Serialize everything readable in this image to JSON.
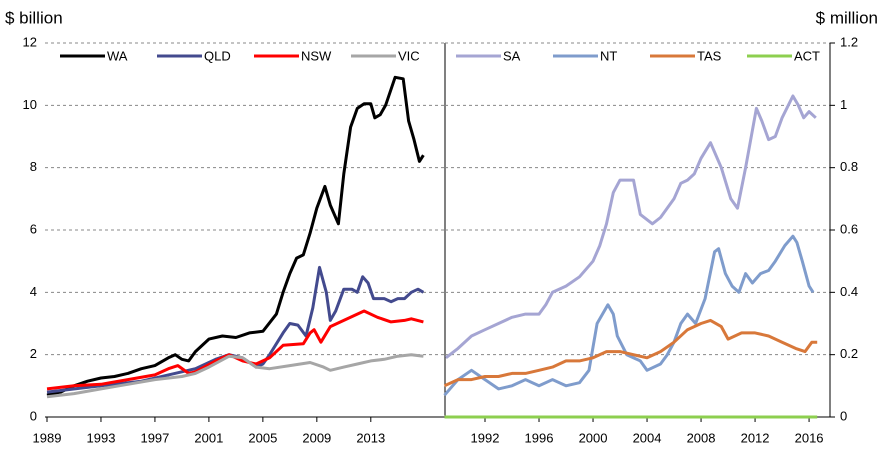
{
  "chart_data": [
    {
      "type": "line",
      "y_label": "$ billion",
      "y_axis_side": "left",
      "grid": true,
      "xlim": [
        1989,
        2018.5
      ],
      "xticks": [
        1989,
        1993,
        1997,
        2001,
        2005,
        2009,
        2013
      ],
      "ylim": [
        0,
        12
      ],
      "yticks": [
        0,
        2,
        4,
        6,
        8,
        10,
        12
      ],
      "series": [
        {
          "name": "WA",
          "color": "#000000",
          "x": [
            1989,
            1990,
            1991,
            1992,
            1993,
            1994,
            1995,
            1996,
            1997,
            1998,
            1998.5,
            1999,
            1999.5,
            2000,
            2001,
            2002,
            2003,
            2004,
            2005,
            2006,
            2006.5,
            2007,
            2007.5,
            2008,
            2008.5,
            2009,
            2009.6,
            2010,
            2010.6,
            2011,
            2011.5,
            2012,
            2012.5,
            2013,
            2013.3,
            2013.7,
            2014.1,
            2014.8,
            2015.4,
            2015.8,
            2016.2,
            2016.6,
            2016.9
          ],
          "values": [
            0.7,
            0.8,
            1.0,
            1.15,
            1.25,
            1.3,
            1.4,
            1.55,
            1.65,
            1.9,
            2.0,
            1.85,
            1.8,
            2.1,
            2.5,
            2.6,
            2.55,
            2.7,
            2.75,
            3.3,
            4.0,
            4.6,
            5.1,
            5.2,
            5.9,
            6.7,
            7.4,
            6.8,
            6.2,
            7.8,
            9.3,
            9.9,
            10.05,
            10.05,
            9.6,
            9.7,
            10.0,
            10.9,
            10.85,
            9.5,
            8.9,
            8.2,
            8.4
          ]
        },
        {
          "name": "QLD",
          "color": "#434a8e",
          "x": [
            1989,
            1993,
            1996,
            1998,
            2000,
            2001.5,
            2002.5,
            2003.5,
            2004.5,
            2005,
            2005.5,
            2006.5,
            2007,
            2007.6,
            2008.2,
            2008.7,
            2009.2,
            2009.7,
            2010,
            2010.4,
            2011,
            2011.6,
            2012,
            2012.4,
            2012.8,
            2013.2,
            2014,
            2014.5,
            2015,
            2015.5,
            2016,
            2016.5,
            2016.9
          ],
          "values": [
            0.8,
            1.0,
            1.15,
            1.35,
            1.55,
            1.85,
            2.0,
            1.9,
            1.6,
            1.7,
            2.0,
            2.7,
            3.0,
            2.95,
            2.6,
            3.5,
            4.8,
            4.0,
            3.1,
            3.4,
            4.1,
            4.1,
            4.0,
            4.5,
            4.3,
            3.8,
            3.8,
            3.7,
            3.8,
            3.8,
            4.0,
            4.1,
            4.0
          ]
        },
        {
          "name": "NSW",
          "color": "#ff0000",
          "x": [
            1989,
            1991,
            1993,
            1995,
            1997,
            1998,
            1998.7,
            1999.5,
            2000,
            2001.5,
            2002.5,
            2003.5,
            2004.5,
            2005.5,
            2006.5,
            2008,
            2008.5,
            2008.8,
            2009.3,
            2010,
            2011,
            2012,
            2012.5,
            2013.5,
            2014.5,
            2015.5,
            2016,
            2016.9
          ],
          "values": [
            0.9,
            1.0,
            1.05,
            1.2,
            1.35,
            1.55,
            1.65,
            1.4,
            1.45,
            1.8,
            2.0,
            1.8,
            1.7,
            1.9,
            2.3,
            2.35,
            2.7,
            2.8,
            2.4,
            2.9,
            3.1,
            3.3,
            3.4,
            3.2,
            3.05,
            3.1,
            3.15,
            3.05
          ]
        },
        {
          "name": "VIC",
          "color": "#a6a6a6",
          "x": [
            1989,
            1991,
            1993,
            1995,
            1997,
            1999,
            2000,
            2001,
            2002.5,
            2003.5,
            2004.5,
            2005.5,
            2007,
            2008.5,
            2009.5,
            2010,
            2011,
            2012,
            2013,
            2014,
            2015,
            2016,
            2016.9
          ],
          "values": [
            0.65,
            0.75,
            0.9,
            1.05,
            1.2,
            1.3,
            1.4,
            1.6,
            1.95,
            1.9,
            1.6,
            1.55,
            1.65,
            1.75,
            1.6,
            1.5,
            1.6,
            1.7,
            1.8,
            1.85,
            1.95,
            2.0,
            1.95
          ]
        }
      ]
    },
    {
      "type": "line",
      "y_label": "$ million",
      "y_axis_side": "right",
      "grid": true,
      "xlim": [
        1989,
        2017.55
      ],
      "xticks": [
        1992,
        1996,
        2000,
        2004,
        2008,
        2012,
        2016
      ],
      "ylim": [
        0,
        1.2
      ],
      "yticks": [
        0,
        0.2,
        0.4,
        0.6,
        0.8,
        1,
        1.2
      ],
      "series": [
        {
          "name": "SA",
          "color": "#a5a5d3",
          "x": [
            1989.1,
            1990,
            1991,
            1992,
            1993,
            1994,
            1995,
            1996,
            1996.5,
            1997,
            1998,
            1999,
            2000,
            2000.5,
            2001,
            2001.5,
            2002,
            2003,
            2003.5,
            2004.4,
            2005,
            2006,
            2006.5,
            2007,
            2007.5,
            2008,
            2008.7,
            2009.5,
            2010.2,
            2010.7,
            2011.3,
            2012.1,
            2012.5,
            2013,
            2013.5,
            2014,
            2014.8,
            2015.2,
            2015.6,
            2016,
            2016.5
          ],
          "values": [
            0.19,
            0.22,
            0.26,
            0.28,
            0.3,
            0.32,
            0.33,
            0.33,
            0.36,
            0.4,
            0.42,
            0.45,
            0.5,
            0.55,
            0.62,
            0.72,
            0.76,
            0.76,
            0.65,
            0.62,
            0.64,
            0.7,
            0.75,
            0.76,
            0.78,
            0.83,
            0.88,
            0.8,
            0.7,
            0.67,
            0.8,
            0.99,
            0.95,
            0.89,
            0.9,
            0.96,
            1.03,
            1.0,
            0.96,
            0.98,
            0.96
          ]
        },
        {
          "name": "NT",
          "color": "#7f9ccc",
          "x": [
            1989,
            1990,
            1991,
            1992,
            1993,
            1994,
            1995,
            1996,
            1997,
            1998,
            1999,
            1999.7,
            2000.3,
            2001.1,
            2001.5,
            2001.8,
            2002.5,
            2003.5,
            2004,
            2005,
            2005.5,
            2006,
            2006.5,
            2007,
            2007.6,
            2008.3,
            2009,
            2009.3,
            2009.8,
            2010.3,
            2010.8,
            2011.3,
            2011.8,
            2012.4,
            2013,
            2013.5,
            2014.2,
            2014.8,
            2015.1,
            2015.5,
            2016,
            2016.3
          ],
          "values": [
            0.07,
            0.12,
            0.15,
            0.12,
            0.09,
            0.1,
            0.12,
            0.1,
            0.12,
            0.1,
            0.11,
            0.15,
            0.3,
            0.36,
            0.33,
            0.26,
            0.2,
            0.18,
            0.15,
            0.17,
            0.2,
            0.24,
            0.3,
            0.33,
            0.3,
            0.38,
            0.53,
            0.54,
            0.46,
            0.42,
            0.4,
            0.46,
            0.43,
            0.46,
            0.47,
            0.5,
            0.55,
            0.58,
            0.56,
            0.5,
            0.42,
            0.4
          ]
        },
        {
          "name": "TAS",
          "color": "#d8783a",
          "x": [
            1989,
            1990,
            1991,
            1992,
            1993,
            1994,
            1995,
            1996,
            1997,
            1998,
            1999,
            2000,
            2001,
            2002,
            2003,
            2004,
            2005,
            2006,
            2007,
            2008,
            2008.7,
            2009.5,
            2010,
            2011,
            2012,
            2013,
            2014,
            2015,
            2015.7,
            2016.2,
            2016.6
          ],
          "values": [
            0.1,
            0.12,
            0.12,
            0.13,
            0.13,
            0.14,
            0.14,
            0.15,
            0.16,
            0.18,
            0.18,
            0.19,
            0.21,
            0.21,
            0.2,
            0.19,
            0.21,
            0.24,
            0.28,
            0.3,
            0.31,
            0.29,
            0.25,
            0.27,
            0.27,
            0.26,
            0.24,
            0.22,
            0.21,
            0.24,
            0.24
          ]
        },
        {
          "name": "ACT",
          "color": "#8dcf4f",
          "x": [
            1989,
            2016.6
          ],
          "values": [
            0,
            0
          ]
        }
      ]
    }
  ]
}
